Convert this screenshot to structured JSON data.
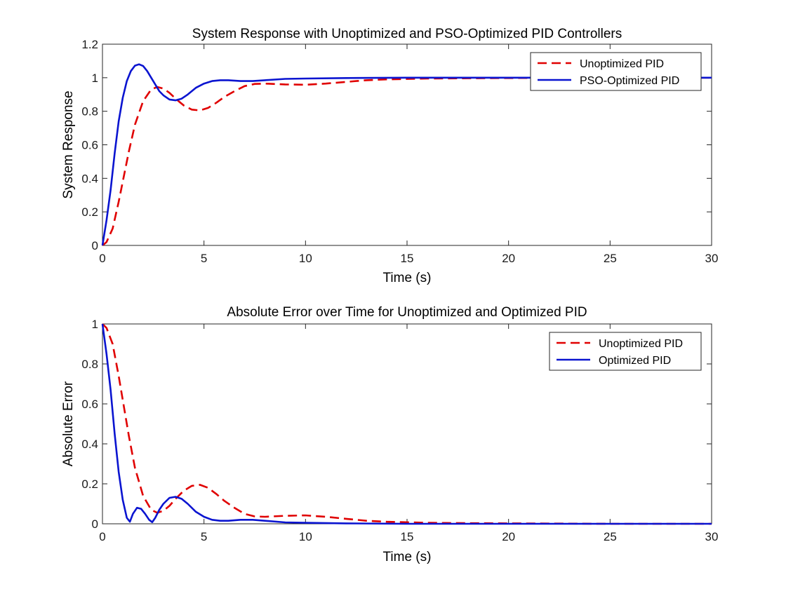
{
  "chart_data": [
    {
      "type": "line",
      "title": "System Response with Unoptimized and PSO-Optimized PID Controllers",
      "xlabel": "Time (s)",
      "ylabel": "System Response",
      "xlim": [
        0,
        30
      ],
      "ylim": [
        0,
        1.2
      ],
      "xticks": [
        0,
        5,
        10,
        15,
        20,
        25,
        30
      ],
      "yticks": [
        0,
        0.2,
        0.4,
        0.6,
        0.8,
        1,
        1.2
      ],
      "legend_position": "top-right",
      "series": [
        {
          "name": "Unoptimized PID",
          "color": "#e00000",
          "style": "dashed",
          "x": [
            0,
            0.2,
            0.5,
            0.8,
            1.0,
            1.3,
            1.6,
            2.0,
            2.4,
            2.7,
            3.0,
            3.3,
            3.6,
            4.0,
            4.4,
            4.8,
            5.2,
            5.6,
            6.0,
            6.5,
            7.0,
            7.5,
            8.0,
            9.0,
            10.0,
            11.0,
            12.0,
            13.0,
            14.0,
            16.0,
            18.0,
            20.0,
            25.0,
            30.0
          ],
          "y": [
            0,
            0.02,
            0.1,
            0.26,
            0.38,
            0.56,
            0.72,
            0.86,
            0.93,
            0.945,
            0.935,
            0.91,
            0.875,
            0.835,
            0.81,
            0.805,
            0.82,
            0.85,
            0.885,
            0.92,
            0.95,
            0.963,
            0.965,
            0.96,
            0.958,
            0.965,
            0.975,
            0.985,
            0.99,
            0.995,
            0.997,
            0.998,
            1.0,
            1.0
          ]
        },
        {
          "name": "PSO-Optimized PID",
          "color": "#0a14d0",
          "style": "solid",
          "x": [
            0,
            0.2,
            0.4,
            0.6,
            0.8,
            1.0,
            1.2,
            1.4,
            1.6,
            1.8,
            2.0,
            2.2,
            2.5,
            2.8,
            3.0,
            3.3,
            3.6,
            3.9,
            4.2,
            4.6,
            5.0,
            5.4,
            5.8,
            6.2,
            6.8,
            7.4,
            8.0,
            9.0,
            10.0,
            12.0,
            15.0,
            20.0,
            25.0,
            30.0
          ],
          "y": [
            0,
            0.15,
            0.33,
            0.55,
            0.74,
            0.88,
            0.98,
            1.04,
            1.072,
            1.08,
            1.07,
            1.04,
            0.98,
            0.92,
            0.895,
            0.87,
            0.865,
            0.875,
            0.9,
            0.94,
            0.965,
            0.98,
            0.985,
            0.985,
            0.98,
            0.98,
            0.985,
            0.993,
            0.995,
            0.998,
            1.0,
            1.0,
            1.0,
            1.0
          ]
        }
      ]
    },
    {
      "type": "line",
      "title": "Absolute Error over Time for Unoptimized and Optimized PID",
      "xlabel": "Time (s)",
      "ylabel": "Absolute Error",
      "xlim": [
        0,
        30
      ],
      "ylim": [
        0,
        1
      ],
      "xticks": [
        0,
        5,
        10,
        15,
        20,
        25,
        30
      ],
      "yticks": [
        0,
        0.2,
        0.4,
        0.6,
        0.8,
        1
      ],
      "legend_position": "top-right",
      "series": [
        {
          "name": "Unoptimized PID",
          "color": "#e00000",
          "style": "dashed",
          "x": [
            0,
            0.2,
            0.5,
            0.8,
            1.0,
            1.3,
            1.6,
            2.0,
            2.4,
            2.7,
            3.0,
            3.3,
            3.6,
            4.0,
            4.4,
            4.8,
            5.2,
            5.6,
            6.0,
            6.5,
            7.0,
            7.5,
            8.0,
            9.0,
            10.0,
            11.0,
            12.0,
            13.0,
            14.0,
            16.0,
            18.0,
            20.0,
            25.0,
            30.0
          ],
          "y": [
            1,
            0.98,
            0.9,
            0.74,
            0.62,
            0.44,
            0.28,
            0.14,
            0.07,
            0.055,
            0.065,
            0.09,
            0.125,
            0.165,
            0.19,
            0.195,
            0.18,
            0.15,
            0.115,
            0.08,
            0.05,
            0.037,
            0.035,
            0.04,
            0.042,
            0.035,
            0.025,
            0.015,
            0.01,
            0.005,
            0.003,
            0.002,
            0.0,
            0.0
          ]
        },
        {
          "name": "Optimized PID",
          "color": "#0a14d0",
          "style": "solid",
          "x": [
            0,
            0.2,
            0.4,
            0.6,
            0.8,
            1.0,
            1.2,
            1.35,
            1.5,
            1.7,
            1.9,
            2.1,
            2.3,
            2.45,
            2.6,
            2.8,
            3.0,
            3.3,
            3.6,
            3.9,
            4.2,
            4.6,
            5.0,
            5.4,
            5.8,
            6.2,
            6.8,
            7.4,
            8.0,
            9.0,
            10.0,
            12.0,
            15.0,
            20.0,
            25.0,
            30.0
          ],
          "y": [
            1,
            0.85,
            0.67,
            0.45,
            0.26,
            0.12,
            0.03,
            0.01,
            0.05,
            0.08,
            0.075,
            0.05,
            0.02,
            0.008,
            0.03,
            0.07,
            0.1,
            0.13,
            0.135,
            0.125,
            0.1,
            0.06,
            0.035,
            0.02,
            0.015,
            0.015,
            0.02,
            0.02,
            0.015,
            0.007,
            0.005,
            0.002,
            0.0,
            0.0,
            0.0,
            0.0
          ]
        }
      ]
    }
  ]
}
